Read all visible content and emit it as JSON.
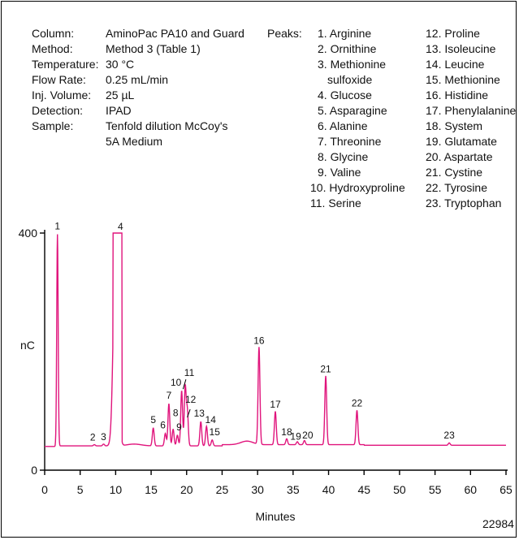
{
  "conditions": [
    {
      "label": "Column:",
      "value": "AminoPac PA10 and Guard"
    },
    {
      "label": "Method:",
      "value": "Method 3 (Table 1)"
    },
    {
      "label": "Temperature:",
      "value": "30 °C"
    },
    {
      "label": "Flow Rate:",
      "value": "0.25 mL/min"
    },
    {
      "label": "Inj. Volume:",
      "value": "25 µL"
    },
    {
      "label": "Detection:",
      "value": "IPAD"
    },
    {
      "label": "Sample:",
      "value": "Tenfold dilution McCoy's"
    },
    {
      "label": "",
      "value": "5A Medium"
    }
  ],
  "peaks_heading": "Peaks:",
  "peaks_col1": [
    "1. Arginine",
    "2. Ornithine",
    "3. Methionine",
    "sulfoxide",
    "4. Glucose",
    "5. Asparagine",
    "6. Alanine",
    "7. Threonine",
    "8. Glycine",
    "9. Valine",
    "10. Hydroxyproline",
    "11. Serine"
  ],
  "peaks_col2": [
    "12. Proline",
    "13. Isoleucine",
    "14. Leucine",
    "15. Methionine",
    "16. Histidine",
    "17. Phenylalanine",
    "18. System",
    "19. Glutamate",
    "20. Aspartate",
    "21. Cystine",
    "22. Tyrosine",
    "23. Tryptophan"
  ],
  "figure_id": "22984",
  "colors": {
    "trace": "#e0147c",
    "axis": "#000000"
  },
  "chart_data": {
    "type": "line",
    "xlabel": "Minutes",
    "ylabel": "nC",
    "xlim": [
      0,
      65
    ],
    "ylim": [
      0,
      400
    ],
    "x_ticks": [
      0,
      5,
      10,
      15,
      20,
      25,
      30,
      35,
      40,
      45,
      50,
      55,
      60,
      65
    ],
    "y_ticks": [
      0,
      400
    ],
    "grid": false,
    "baseline": 41,
    "peaks": [
      {
        "label": "1",
        "x": 1.8,
        "y": 398
      },
      {
        "label": "2",
        "x": 7.0,
        "y": 43
      },
      {
        "label": "3",
        "x": 8.3,
        "y": 44
      },
      {
        "label": "4",
        "x": 10.0,
        "y": 400
      },
      {
        "label": "5",
        "x": 15.3,
        "y": 71
      },
      {
        "label": "6",
        "x": 17.0,
        "y": 62
      },
      {
        "label": "7",
        "x": 17.5,
        "y": 112
      },
      {
        "label": "8",
        "x": 18.1,
        "y": 69
      },
      {
        "label": "9",
        "x": 18.7,
        "y": 59
      },
      {
        "label": "10",
        "x": 19.3,
        "y": 134
      },
      {
        "label": "11",
        "x": 19.8,
        "y": 140
      },
      {
        "label": "12",
        "x": 20.1,
        "y": 100
      },
      {
        "label": "13",
        "x": 22.0,
        "y": 82
      },
      {
        "label": "14",
        "x": 22.8,
        "y": 74
      },
      {
        "label": "15",
        "x": 23.6,
        "y": 51
      },
      {
        "label": "16",
        "x": 30.2,
        "y": 205
      },
      {
        "label": "17",
        "x": 32.5,
        "y": 97
      },
      {
        "label": "18",
        "x": 34.1,
        "y": 51
      },
      {
        "label": "19",
        "x": 35.6,
        "y": 46
      },
      {
        "label": "20",
        "x": 36.6,
        "y": 48
      },
      {
        "label": "21",
        "x": 39.6,
        "y": 157
      },
      {
        "label": "22",
        "x": 44.0,
        "y": 99
      },
      {
        "label": "23",
        "x": 57.0,
        "y": 45
      }
    ]
  }
}
